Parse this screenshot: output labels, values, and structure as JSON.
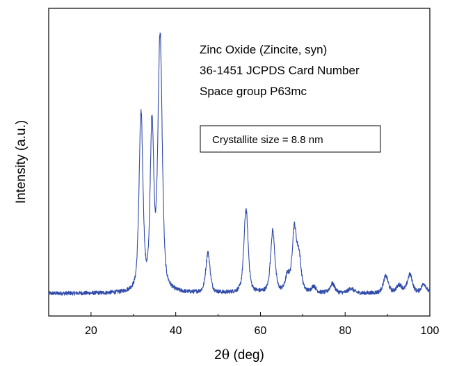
{
  "chart_data": {
    "type": "line",
    "title": "",
    "xlabel_prefix": "2",
    "xlabel_symbol": "θ",
    "xlabel_suffix": " (deg)",
    "ylabel": "Intensity (a.u.)",
    "xlim": [
      10,
      100
    ],
    "ylim": [
      0,
      100
    ],
    "x_ticks": [
      20,
      40,
      60,
      80,
      100
    ],
    "y_ticks_shown": false,
    "grid": false,
    "line_color": "#2f4aa8",
    "annotations": [
      "Zinc Oxide (Zincite, syn)",
      "36-1451 JCPDS Card Number",
      "Space group P63mc"
    ],
    "boxed_annotation": "Crystallite size = 8.8 nm",
    "baseline": 7.3,
    "peaks": [
      {
        "x": 31.8,
        "height": 57,
        "width": 0.55
      },
      {
        "x": 34.4,
        "height": 53,
        "width": 0.5
      },
      {
        "x": 36.3,
        "height": 83,
        "width": 0.6
      },
      {
        "x": 47.6,
        "height": 13,
        "width": 0.6
      },
      {
        "x": 56.6,
        "height": 27,
        "width": 0.6
      },
      {
        "x": 62.9,
        "height": 20,
        "width": 0.6
      },
      {
        "x": 66.4,
        "height": 5,
        "width": 0.6
      },
      {
        "x": 68.0,
        "height": 20,
        "width": 0.6
      },
      {
        "x": 69.1,
        "height": 11,
        "width": 0.6
      },
      {
        "x": 72.6,
        "height": 2,
        "width": 0.6
      },
      {
        "x": 77.0,
        "height": 3,
        "width": 0.7
      },
      {
        "x": 81.4,
        "height": 1.5,
        "width": 0.8
      },
      {
        "x": 89.6,
        "height": 5.5,
        "width": 0.7
      },
      {
        "x": 92.8,
        "height": 2.5,
        "width": 0.8
      },
      {
        "x": 95.3,
        "height": 6,
        "width": 0.7
      },
      {
        "x": 98.6,
        "height": 3,
        "width": 0.7
      }
    ]
  }
}
